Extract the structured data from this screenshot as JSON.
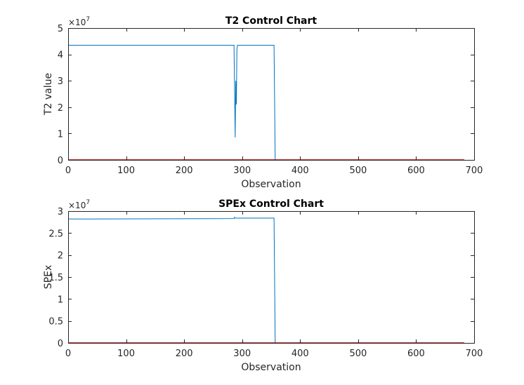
{
  "chart_data": [
    {
      "type": "line",
      "title": "T2 Control Chart",
      "xlabel": "Observation",
      "ylabel": "T2 value",
      "y_exponent_base": "×10",
      "y_exponent_power": "7",
      "xlim": [
        0,
        700
      ],
      "ylim": [
        0,
        5
      ],
      "x_ticks": [
        0,
        100,
        200,
        300,
        400,
        500,
        600,
        700
      ],
      "y_ticks": [
        0,
        1,
        2,
        3,
        4,
        5
      ],
      "y_tick_labels": [
        "0",
        "1",
        "2",
        "3",
        "4",
        "5"
      ],
      "grid": false,
      "series": [
        {
          "color": "#0072BD",
          "x": [
            0,
            286,
            287,
            288,
            289,
            290,
            291,
            292,
            355,
            356,
            357,
            358,
            683
          ],
          "y": [
            4.35,
            4.35,
            2.6,
            0.85,
            3.0,
            2.1,
            4.2,
            4.35,
            4.35,
            2.2,
            0.0,
            0.0,
            0.0
          ]
        },
        {
          "color": "#C00000",
          "x": [
            0,
            683
          ],
          "y": [
            0.0,
            0.0
          ]
        }
      ]
    },
    {
      "type": "line",
      "title": "SPEx Control Chart",
      "xlabel": "Observation",
      "ylabel": "SPEx",
      "y_exponent_base": "×10",
      "y_exponent_power": "7",
      "xlim": [
        0,
        700
      ],
      "ylim": [
        0,
        3
      ],
      "x_ticks": [
        0,
        100,
        200,
        300,
        400,
        500,
        600,
        700
      ],
      "y_ticks": [
        0,
        0.5,
        1,
        1.5,
        2,
        2.5,
        3
      ],
      "y_tick_labels": [
        "0",
        "0.5",
        "1",
        "1.5",
        "2",
        "2.5",
        "3"
      ],
      "grid": false,
      "series": [
        {
          "color": "#0072BD",
          "x": [
            0,
            286,
            287,
            288,
            289,
            355,
            356,
            357,
            358,
            683
          ],
          "y": [
            2.82,
            2.83,
            2.86,
            2.84,
            2.84,
            2.84,
            1.42,
            0.0,
            0.0,
            0.0
          ]
        },
        {
          "color": "#C00000",
          "x": [
            0,
            683
          ],
          "y": [
            0.0,
            0.0
          ]
        }
      ]
    }
  ]
}
